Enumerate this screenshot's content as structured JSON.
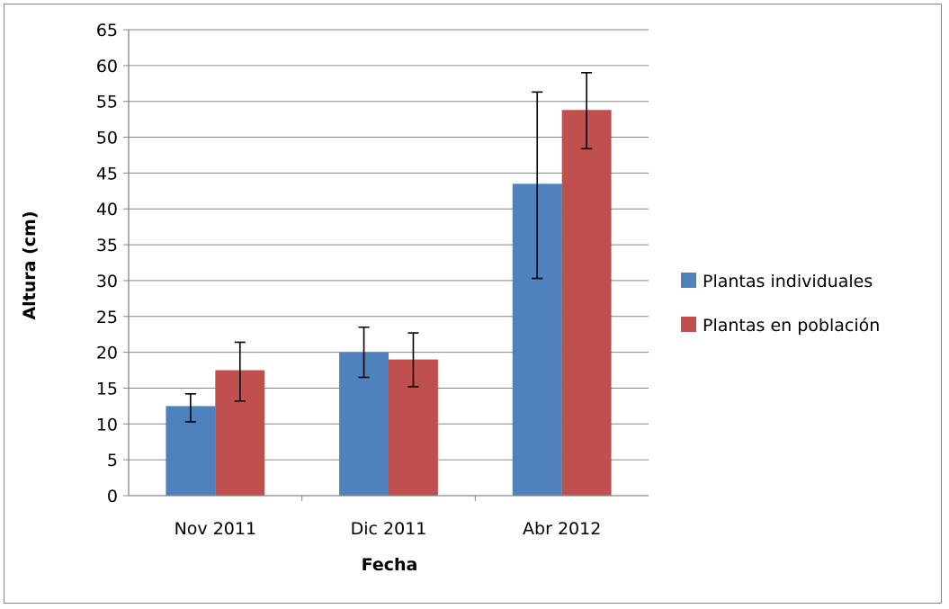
{
  "chart_data": {
    "type": "bar",
    "title": "",
    "xlabel": "Fecha",
    "ylabel": "Altura (cm)",
    "categories": [
      "Nov 2011",
      "Dic 2011",
      "Abr 2012"
    ],
    "ylim": [
      0,
      65
    ],
    "yticks": [
      0,
      5,
      10,
      15,
      20,
      25,
      30,
      35,
      40,
      45,
      50,
      55,
      60,
      65
    ],
    "grid": true,
    "legend_position": "right",
    "series": [
      {
        "name": "Plantas individuales",
        "color": "#4f81bd",
        "values": [
          12.5,
          20.0,
          43.5
        ],
        "error_low": [
          10.3,
          16.5,
          30.3
        ],
        "error_high": [
          14.2,
          23.5,
          56.3
        ]
      },
      {
        "name": "Plantas en población",
        "color": "#c0504d",
        "values": [
          17.5,
          19.0,
          53.8
        ],
        "error_low": [
          13.2,
          15.2,
          48.4
        ],
        "error_high": [
          21.4,
          22.7,
          59.0
        ]
      }
    ]
  }
}
